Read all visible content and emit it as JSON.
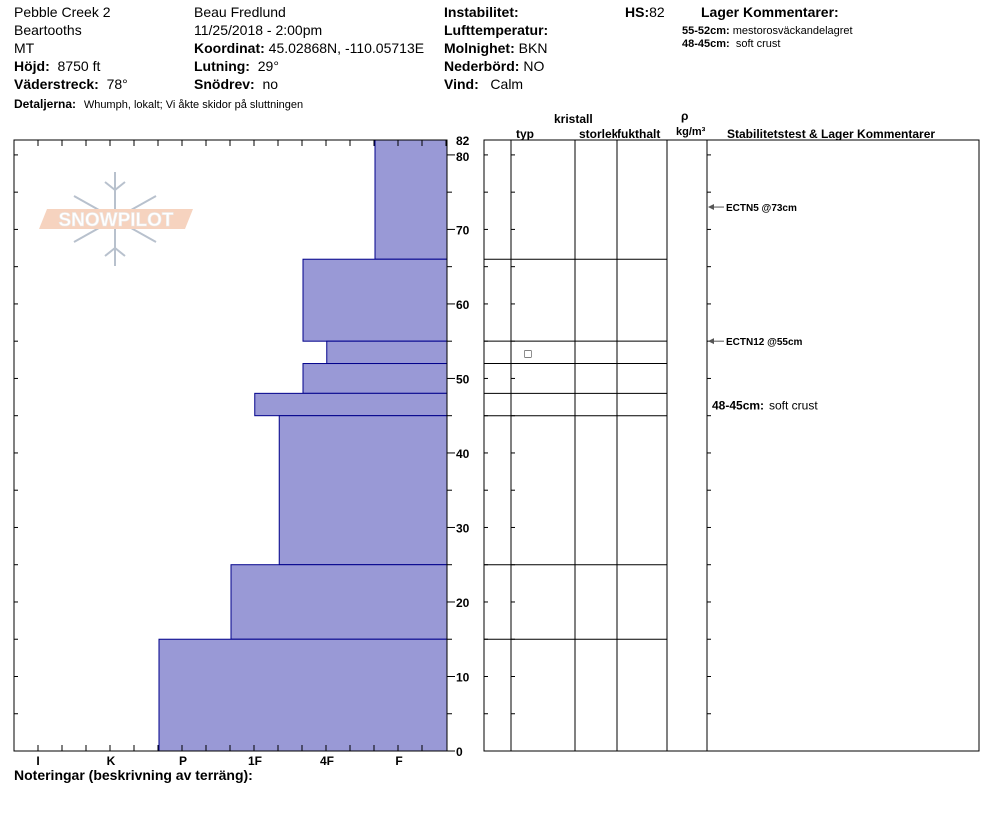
{
  "header": {
    "location": "Pebble Creek 2",
    "range": "Beartooths",
    "state": "MT",
    "elevation_label": "Höjd:",
    "elevation_value": "8750 ft",
    "aspect_label": "Väderstreck:",
    "aspect_value": "78°",
    "details_label": "Detaljerna:",
    "details_value": "Whumph, lokalt;  Vi åkte skidor på sluttningen",
    "observer": "Beau  Fredlund",
    "datetime": "11/25/2018 - 2:00pm",
    "coord_label": "Koordinat:",
    "coord_value": "45.02868N, -110.05713E",
    "slope_label": "Lutning:",
    "slope_value": "29°",
    "drift_label": "Snödrev:",
    "drift_value": "no",
    "instability_label": "Instabilitet:",
    "airtemp_label": "Lufttemperatur:",
    "cloud_label": "Molnighet:",
    "cloud_value": "BKN",
    "precip_label": "Nederbörd:",
    "precip_value": "NO",
    "wind_label": "Vind:",
    "wind_value": "Calm",
    "hs_label": "HS:",
    "hs_value": "82",
    "layer_comments_title": "Lager Kommentarer:",
    "layer_comments": [
      {
        "range": "55-52cm:",
        "text": "mestorosväckandelagret"
      },
      {
        "range": "48-45cm:",
        "text": "soft crust"
      }
    ]
  },
  "columns": {
    "crystal": "kristall",
    "type": "typ",
    "size": "storlek",
    "moisture": "fukthalt",
    "rho": "ρ",
    "density_unit": "kg/m³",
    "stability": "Stabilitetstest & Lager Kommentarer"
  },
  "notes_label": "Noteringar (beskrivning av terräng):",
  "logo_text": "SNOWPILOT",
  "colors": {
    "hardness_fill": "#9999d6",
    "hardness_stroke": "#00008b"
  },
  "chart_data": {
    "type": "bar",
    "orientation": "horizontal",
    "y_axis": {
      "label": "",
      "unit": "cm",
      "range": [
        0,
        82
      ],
      "ticks": [
        0,
        10,
        20,
        30,
        40,
        50,
        60,
        70,
        80,
        82
      ]
    },
    "x_axis": {
      "label": "",
      "categories": [
        "I",
        "K",
        "P",
        "1F",
        "4F",
        "F"
      ]
    },
    "layers": [
      {
        "top": 82,
        "bottom": 66,
        "hardness": "F"
      },
      {
        "top": 66,
        "bottom": 55,
        "hardness": "4F"
      },
      {
        "top": 55,
        "bottom": 52,
        "hardness": "4F-"
      },
      {
        "top": 52,
        "bottom": 48,
        "hardness": "4F"
      },
      {
        "top": 48,
        "bottom": 45,
        "hardness": "1F-"
      },
      {
        "top": 45,
        "bottom": 25,
        "hardness": "4F+"
      },
      {
        "top": 25,
        "bottom": 15,
        "hardness": "1F"
      },
      {
        "top": 15,
        "bottom": 0,
        "hardness": "P"
      }
    ],
    "hardness_levels": {
      "F": 1,
      "4F-": 1.67,
      "4F": 2,
      "4F+": 2.33,
      "1F-": 2.67,
      "1F": 3,
      "P": 4
    },
    "grain_markers": [
      {
        "height": 53.5,
        "symbol": "□"
      }
    ],
    "stability_tests": [
      {
        "height": 73,
        "label": "ECTN5 @73cm"
      },
      {
        "height": 55,
        "label": "ECTN12 @55cm"
      }
    ],
    "layer_annotations": [
      {
        "height": 46.5,
        "range": "48-45cm:",
        "text": "soft crust"
      }
    ]
  }
}
